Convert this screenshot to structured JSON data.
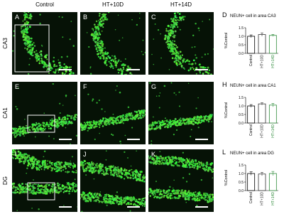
{
  "figure": {
    "column_labels": [
      "Control",
      "HT+10D",
      "HT+14D"
    ],
    "row_labels": [
      "CA3",
      "CA1",
      "DG"
    ],
    "panel_letters": [
      [
        "A",
        "B",
        "C"
      ],
      [
        "E",
        "F",
        "G"
      ],
      [
        "I",
        "J",
        "K"
      ]
    ]
  },
  "chart_data": [
    {
      "type": "bar",
      "panel": "D",
      "title": "NEUN+ cell in area CA3",
      "ylabel": "%Control",
      "categories": [
        "Control",
        "HT+10D",
        "HT+14D"
      ],
      "values": [
        1.0,
        1.1,
        1.05
      ],
      "errors": [
        0.08,
        0.1,
        0.06
      ],
      "colors": [
        "#000000",
        "#333333",
        "#2e8b3a"
      ],
      "ylim": [
        0,
        1.5
      ],
      "yticks": [
        {
          "value": 0,
          "label": "0.0"
        },
        {
          "value": 0.5,
          "label": "0.5"
        },
        {
          "value": 1,
          "label": "1.0"
        },
        {
          "value": 1.5,
          "label": "1.5"
        }
      ]
    },
    {
      "type": "bar",
      "panel": "H",
      "title": "NEUN+ cell in area CA1",
      "ylabel": "%Control",
      "categories": [
        "Control",
        "HT+10D",
        "HT+14D"
      ],
      "values": [
        1.0,
        1.12,
        1.05
      ],
      "errors": [
        0.08,
        0.07,
        0.1
      ],
      "colors": [
        "#000000",
        "#333333",
        "#2e8b3a"
      ],
      "ylim": [
        0,
        1.5
      ],
      "yticks": [
        {
          "value": 0,
          "label": "0.0"
        },
        {
          "value": 0.5,
          "label": "0.5"
        },
        {
          "value": 1,
          "label": "1.0"
        },
        {
          "value": 1.5,
          "label": "1.5"
        }
      ]
    },
    {
      "type": "bar",
      "panel": "L",
      "title": "NEUN+ cell in area DG",
      "ylabel": "%Control",
      "categories": [
        "Control",
        "HT+10D",
        "HT+14D"
      ],
      "values": [
        1.0,
        0.97,
        1.0
      ],
      "errors": [
        0.1,
        0.1,
        0.12
      ],
      "colors": [
        "#000000",
        "#333333",
        "#2e8b3a"
      ],
      "ylim": [
        0,
        1.5
      ],
      "yticks": [
        {
          "value": 0,
          "label": "0.0"
        },
        {
          "value": 0.5,
          "label": "0.5"
        },
        {
          "value": 1,
          "label": "1.0"
        },
        {
          "value": 1.5,
          "label": "1.5"
        }
      ]
    }
  ]
}
